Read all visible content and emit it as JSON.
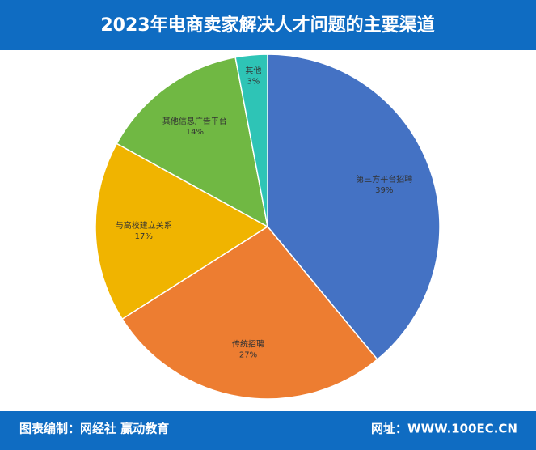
{
  "chart_data": {
    "type": "pie",
    "title": "2023年电商卖家解决人才问题的主要渠道",
    "categories": [
      "第三方平台招聘",
      "传统招聘",
      "与高校建立关系",
      "其他信息广告平台",
      "其他"
    ],
    "values": [
      39,
      27,
      17,
      14,
      3
    ],
    "value_labels": [
      "39%",
      "27%",
      "17%",
      "14%",
      "3%"
    ],
    "colors": [
      "#4472c4",
      "#ed7d31",
      "#f0b400",
      "#70b843",
      "#2ec4b6"
    ]
  },
  "footer": {
    "left": "图表编制：网经社 赢动教育",
    "right": "网址：WWW.100EC.CN"
  }
}
